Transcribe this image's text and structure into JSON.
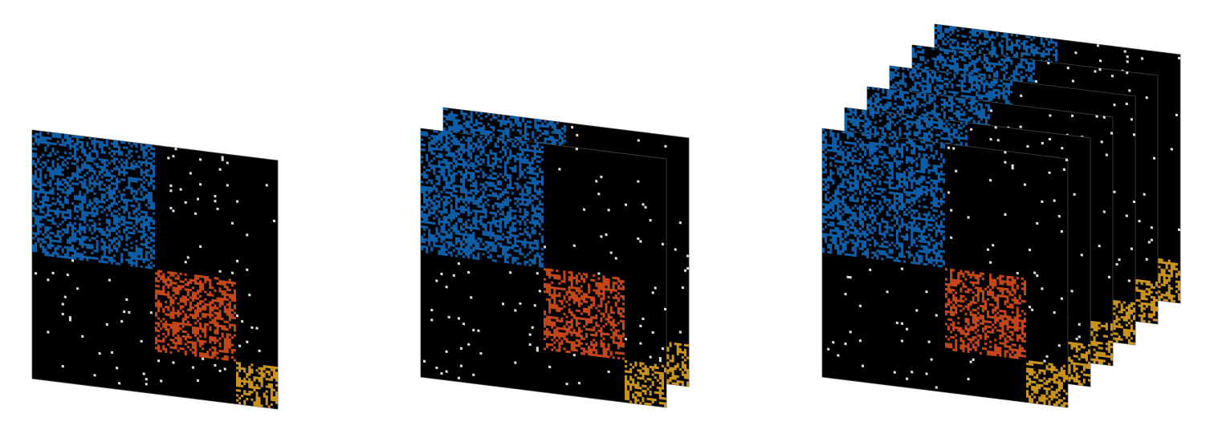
{
  "figure": {
    "groups": [
      {
        "layers": 1
      },
      {
        "layers": 2
      },
      {
        "layers": 6
      }
    ],
    "blocks": [
      {
        "community": "community-1",
        "share": 0.5,
        "color": "#0d5ea6"
      },
      {
        "community": "community-2",
        "share": 0.33,
        "color": "#c2461a"
      },
      {
        "community": "community-3",
        "share": 0.17,
        "color": "#c9921e"
      }
    ],
    "background_color": "#000000",
    "noise_color": "#dddddd",
    "layer_border_color": "#444444"
  }
}
